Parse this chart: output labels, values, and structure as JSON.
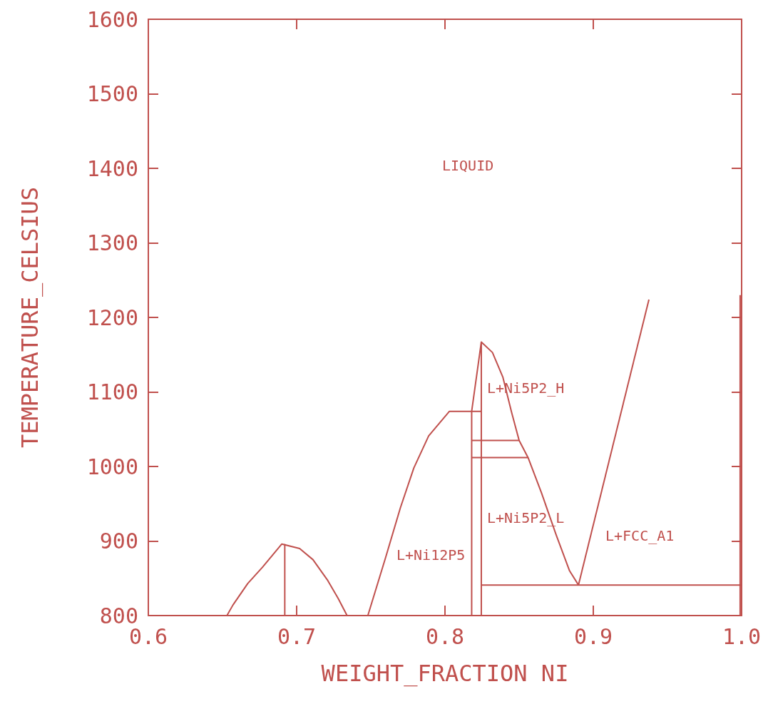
{
  "chart_data": {
    "type": "line",
    "xlabel": "WEIGHT_FRACTION NI",
    "ylabel": "TEMPERATURE_CELSIUS",
    "xlim": [
      0.6,
      1.0
    ],
    "xticks": [
      0.6,
      0.7,
      0.8,
      0.9,
      {
        "value": 1.0,
        "label": "1.0"
      }
    ],
    "ylim": [
      800,
      1600
    ],
    "yticks": [
      800,
      900,
      1000,
      1100,
      1200,
      1300,
      1400,
      1500,
      1600
    ],
    "grid": false,
    "marker": "none",
    "line_style": "solid",
    "series": [
      {
        "color": "#c0504d",
        "x": [
          0.653,
          0.657,
          0.667,
          0.677,
          0.69,
          0.702,
          0.711,
          0.721,
          0.728,
          0.734
        ],
        "values": [
          800,
          814,
          843,
          865,
          896,
          890,
          875,
          847,
          823,
          800
        ]
      },
      {
        "color": "#c0504d",
        "x": [
          0.692,
          0.692
        ],
        "values": [
          896,
          800
        ]
      },
      {
        "color": "#c0504d",
        "x": [
          0.748,
          0.76,
          0.77,
          0.779,
          0.789,
          0.803,
          0.8245
        ],
        "values": [
          800,
          878,
          945,
          998,
          1041,
          1074,
          1074
        ]
      },
      {
        "color": "#c0504d",
        "x": [
          0.818,
          0.818,
          0.8245,
          0.832,
          0.839,
          0.845,
          0.85,
          0.856,
          0.865,
          0.875,
          0.884,
          0.89
        ],
        "values": [
          800,
          1074,
          1167,
          1153,
          1120,
          1072,
          1035,
          1012,
          965,
          908,
          860,
          841
        ]
      },
      {
        "color": "#c0504d",
        "x": [
          0.8245,
          0.8245
        ],
        "values": [
          1167,
          800
        ]
      },
      {
        "color": "#c0504d",
        "x": [
          0.818,
          0.85
        ],
        "values": [
          1035,
          1035
        ]
      },
      {
        "color": "#c0504d",
        "x": [
          0.818,
          0.856
        ],
        "values": [
          1012,
          1012
        ]
      },
      {
        "color": "#c0504d",
        "x": [
          0.89,
          0.9375
        ],
        "values": [
          841,
          1224
        ]
      },
      {
        "color": "#c0504d",
        "x": [
          0.8245,
          1.0
        ],
        "values": [
          841,
          841
        ]
      },
      {
        "color": "#c0504d",
        "x": [
          0.999,
          0.999
        ],
        "values": [
          1230,
          800
        ]
      }
    ],
    "annotations": [
      "LIQUID",
      "L+Ni5P2_H",
      "L+Ni5P2_L",
      "L+Ni12P5",
      "L+FCC_A1"
    ]
  }
}
